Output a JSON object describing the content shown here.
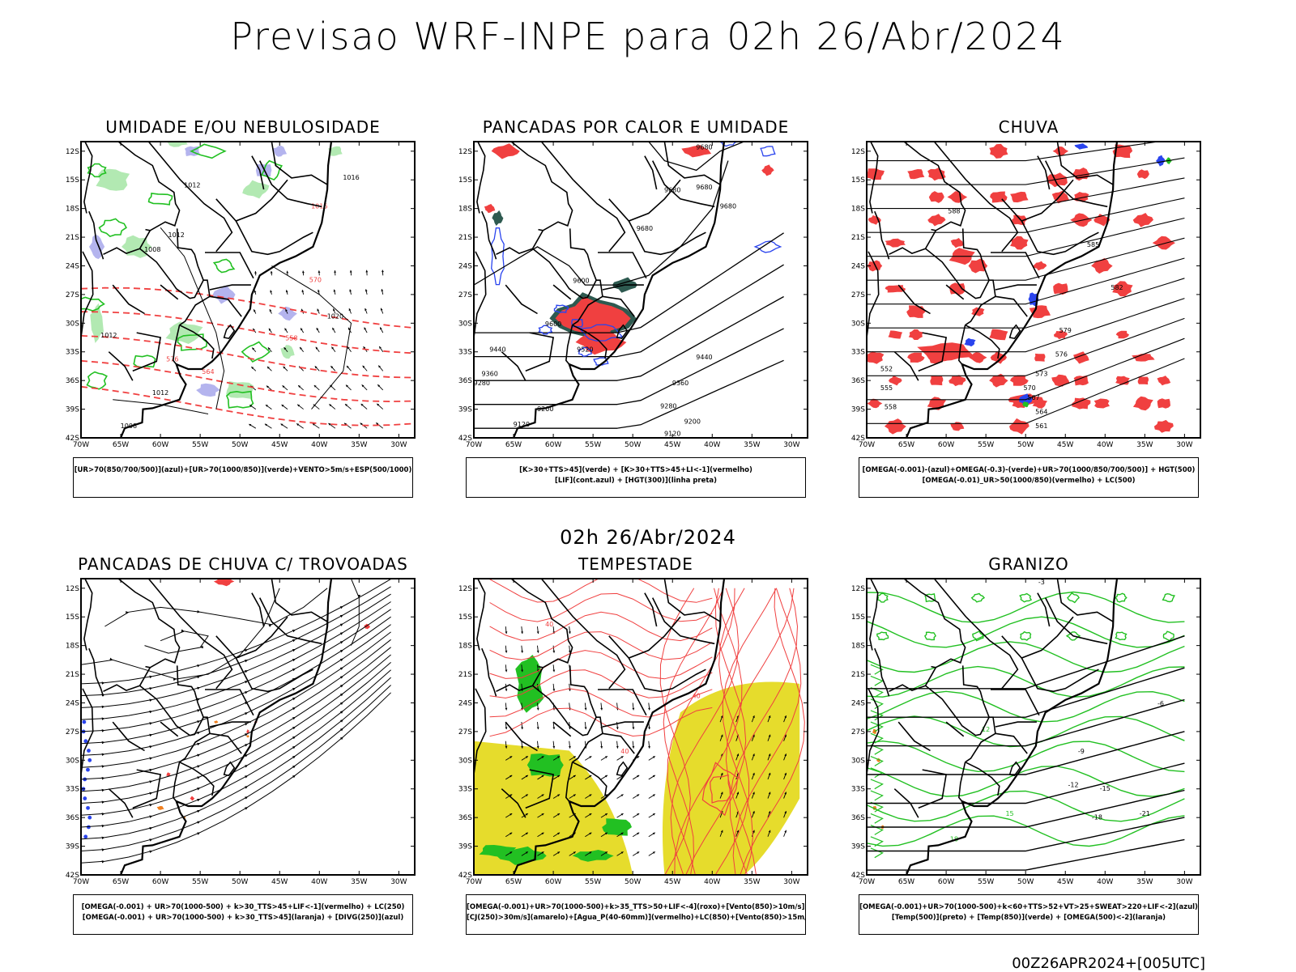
{
  "title": "Previsao WRF-INPE  para 02h 26/Abr/2024",
  "mid_title": "02h 26/Abr/2024",
  "footer": "00Z26APR2024+[005UTC]",
  "axis": {
    "lat_labels": [
      "12S",
      "15S",
      "18S",
      "21S",
      "24S",
      "27S",
      "30S",
      "33S",
      "36S",
      "39S",
      "42S"
    ],
    "lon_labels": [
      "70W",
      "65W",
      "60W",
      "55W",
      "50W",
      "45W",
      "40W",
      "35W",
      "30W"
    ]
  },
  "colors": {
    "red": "#f04040",
    "green": "#22c022",
    "blue": "#2a44ee",
    "lavender": "#b4b4ee",
    "darkteal": "#2e5a50",
    "yellow": "#e6dc2c",
    "orange": "#f08020",
    "black": "#000000"
  },
  "panels": [
    {
      "title": "UMIDADE E/OU NEBULOSIDADE",
      "legend": [
        "[UR>70(850/700/500)](azul)+[UR>70(1000/850)](verde)+VENTO>5m/s+ESP(500/1000)"
      ],
      "contour_labels": [
        "1012",
        "1012",
        "1016",
        "1020",
        "1008",
        "1012",
        "1016",
        "1020",
        "1012",
        "1008",
        "570",
        "576",
        "558",
        "564"
      ]
    },
    {
      "title": "PANCADAS POR CALOR E UMIDADE",
      "legend": [
        "[K>30+TTS>45](verde) + [K>30+TTS>45+LI<-1](vermelho)",
        "[LIF](cont.azul) + [HGT(300)](linha preta)"
      ],
      "contour_labels": [
        "9680",
        "9680",
        "9680",
        "9680",
        "9680",
        "9600",
        "9600",
        "9520",
        "9440",
        "9360",
        "9280",
        "9200",
        "9120",
        "9440",
        "9360",
        "9280",
        "9200",
        "9120"
      ]
    },
    {
      "title": "CHUVA",
      "legend": [
        "[OMEGA(-0.001)-(azul)+OMEGA(-0.3)-(verde)+UR>70(1000/850/700/500)] + HGT(500)",
        "[OMEGA(-0.01)_UR>50(1000/850)(vermelho) + LC(500)"
      ],
      "contour_labels": [
        "588",
        "585",
        "582",
        "579",
        "576",
        "573",
        "570",
        "567",
        "564",
        "561",
        "558",
        "555",
        "552"
      ]
    },
    {
      "title": "PANCADAS DE CHUVA C/ TROVOADAS",
      "legend": [
        "[OMEGA(-0.001) + UR>70(1000-500) + k>30_TTS>45+LIF<-1](vermelho) + LC(250)",
        "[OMEGA(-0.001) + UR>70(1000-500) + k>30_TTS>45](laranja) + [DIVG(250)](azul)"
      ],
      "contour_labels": []
    },
    {
      "title": "TEMPESTADE",
      "legend": [
        "[OMEGA(-0.001)+UR>70(1000-500)+k>35_TTS>50+LIF<-4](roxo)+[Vento(850)>10m/s](verde)",
        "[CJ(250)>30m/s](amarelo)+[Agua_P(40-60mm)](vermelho)+LC(850)+[Vento(850)>15m/s](vetor)"
      ],
      "contour_labels": [
        "40",
        "40",
        "40"
      ]
    },
    {
      "title": "GRANIZO",
      "legend": [
        "[OMEGA(-0.001)+UR>70(1000-500)+k<60+TTS>52+VT>25+SWEAT>220+LIF<-2](azul)",
        "[Temp(500)](preto) + [Temp(850)](verde) + [OMEGA(500)<-2](laranja)"
      ],
      "contour_labels": [
        "-3",
        "-6",
        "-9",
        "-12",
        "-15",
        "-18",
        "-21",
        "12",
        "15",
        "18"
      ]
    }
  ]
}
